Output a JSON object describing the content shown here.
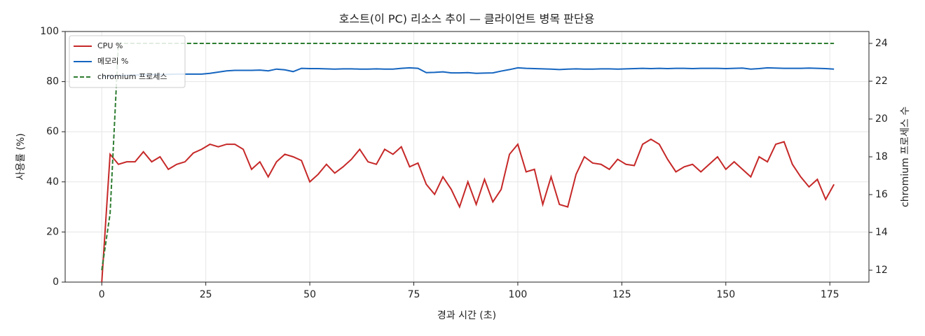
{
  "chart_data": {
    "type": "line",
    "title": "호스트(이 PC) 리소스 추이 — 클라이언트 병목 판단용",
    "x_label": "경과 시간 (초)",
    "y_label": "사용률 (%)",
    "y2_label": "chromium 프로세스 수",
    "x": [
      0,
      2,
      4,
      6,
      8,
      10,
      12,
      14,
      16,
      18,
      20,
      22,
      24,
      26,
      28,
      30,
      32,
      34,
      36,
      38,
      40,
      42,
      44,
      46,
      48,
      50,
      52,
      54,
      56,
      58,
      60,
      62,
      64,
      66,
      68,
      70,
      72,
      74,
      76,
      78,
      80,
      82,
      84,
      86,
      88,
      90,
      92,
      94,
      96,
      98,
      100,
      102,
      104,
      106,
      108,
      110,
      112,
      114,
      116,
      118,
      120,
      122,
      124,
      126,
      128,
      130,
      132,
      134,
      136,
      138,
      140,
      142,
      144,
      146,
      148,
      150,
      152,
      154,
      156,
      158,
      160,
      162,
      164,
      166,
      168,
      170,
      172,
      174,
      176
    ],
    "series": [
      {
        "name": "CPU %",
        "color": "#c62828",
        "axis": "y",
        "linestyle": "solid",
        "values": [
          0,
          51,
          47,
          48,
          48,
          52,
          48,
          50,
          45,
          47,
          48,
          51.5,
          53,
          55,
          54,
          55,
          55,
          53,
          45,
          48,
          42,
          48,
          51,
          50,
          48.5,
          40,
          43,
          47,
          43.5,
          46,
          49,
          53,
          48,
          47,
          53,
          51,
          54,
          46,
          47.5,
          39,
          35,
          42,
          37,
          30,
          40,
          31,
          41,
          32,
          37,
          51,
          55,
          44,
          45,
          31,
          42,
          31,
          30,
          43,
          50,
          47.5,
          47,
          45,
          49,
          47,
          46.5,
          55,
          57,
          55,
          49,
          44,
          46,
          47,
          44,
          47,
          50,
          45,
          48,
          45,
          42,
          50,
          48,
          55,
          56,
          47,
          42,
          38,
          41,
          33,
          39
        ]
      },
      {
        "name": "메모리 %",
        "color": "#1565c0",
        "axis": "y",
        "linestyle": "solid",
        "values": [
          82,
          82.2,
          82.4,
          82.5,
          82.6,
          82.7,
          82.8,
          82.8,
          82.9,
          83,
          83,
          83,
          83,
          83.3,
          83.8,
          84.3,
          84.5,
          84.5,
          84.5,
          84.6,
          84.3,
          85,
          84.7,
          84,
          85.3,
          85.2,
          85.2,
          85.1,
          85,
          85.1,
          85.1,
          85,
          85,
          85.1,
          85,
          85,
          85.3,
          85.5,
          85.3,
          83.6,
          83.7,
          83.9,
          83.5,
          83.5,
          83.6,
          83.3,
          83.4,
          83.5,
          84.2,
          84.8,
          85.5,
          85.3,
          85.2,
          85.1,
          85,
          84.8,
          85,
          85.1,
          85,
          85,
          85.1,
          85.1,
          85,
          85.1,
          85.2,
          85.3,
          85.2,
          85.3,
          85.2,
          85.3,
          85.3,
          85.2,
          85.3,
          85.3,
          85.3,
          85.2,
          85.3,
          85.4,
          85,
          85.2,
          85.5,
          85.4,
          85.3,
          85.3,
          85.3,
          85.4,
          85.3,
          85.2,
          85
        ]
      },
      {
        "name": "chromium 프로세스",
        "color": "#2e7d32",
        "axis": "y2",
        "linestyle": "dashed",
        "values": [
          12,
          15,
          24,
          24,
          24,
          24,
          24,
          24,
          24,
          24,
          24,
          24,
          24,
          24,
          24,
          24,
          24,
          24,
          24,
          24,
          24,
          24,
          24,
          24,
          24,
          24,
          24,
          24,
          24,
          24,
          24,
          24,
          24,
          24,
          24,
          24,
          24,
          24,
          24,
          24,
          24,
          24,
          24,
          24,
          24,
          24,
          24,
          24,
          24,
          24,
          24,
          24,
          24,
          24,
          24,
          24,
          24,
          24,
          24,
          24,
          24,
          24,
          24,
          24,
          24,
          24,
          24,
          24,
          24,
          24,
          24,
          24,
          24,
          24,
          24,
          24,
          24,
          24,
          24,
          24,
          24,
          24,
          24,
          24,
          24,
          24,
          24,
          24,
          24
        ]
      }
    ],
    "xlim": [
      -8.8,
      184.4
    ],
    "xticks": [
      0,
      25,
      50,
      75,
      100,
      125,
      150,
      175
    ],
    "ylim": [
      0,
      100
    ],
    "yticks": [
      0,
      20,
      40,
      60,
      80,
      100
    ],
    "y2lim": [
      11.37,
      24.63
    ],
    "y2ticks": [
      12,
      14,
      16,
      18,
      20,
      22,
      24
    ],
    "grid": true,
    "legend": "upper left"
  }
}
